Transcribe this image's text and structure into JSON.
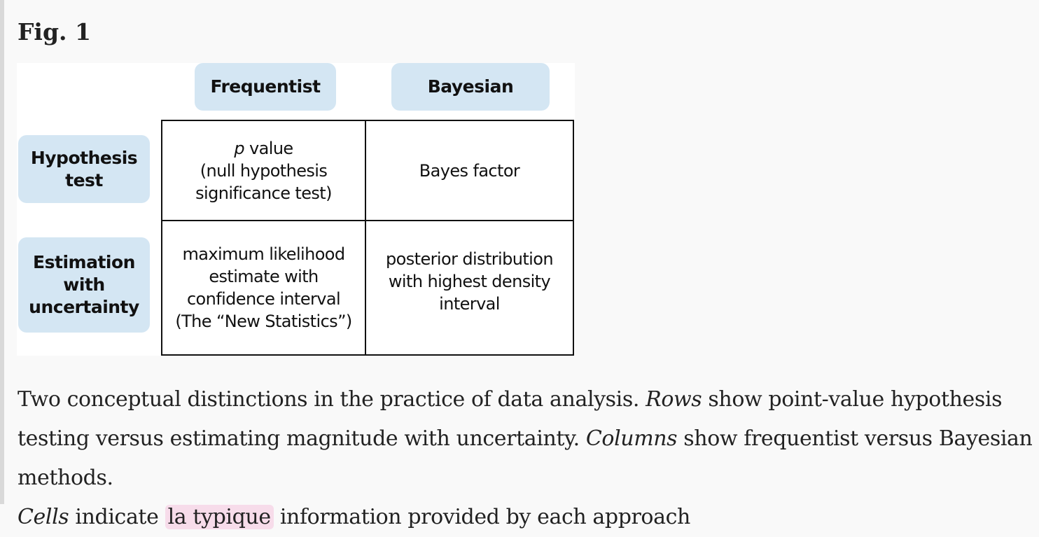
{
  "figure": {
    "label": "Fig. 1",
    "column_headers": [
      "Frequentist",
      "Bayesian"
    ],
    "row_headers": [
      {
        "line1": "Hypothesis",
        "line2": "test",
        "line3": ""
      },
      {
        "line1": "Estimation",
        "line2": "with",
        "line3": "uncertainty"
      }
    ],
    "cells": {
      "r1c1": {
        "italic": "p",
        "line1_rest": " value",
        "line2": "(null hypothesis",
        "line3": "significance test)"
      },
      "r1c2": {
        "line1": "Bayes factor"
      },
      "r2c1": {
        "line1": "maximum likelihood",
        "line2": "estimate with",
        "line3": "confidence interval",
        "line4": "(The “New Statistics”)"
      },
      "r2c2": {
        "line1": "posterior distribution",
        "line2": "with highest density",
        "line3": "interval"
      }
    }
  },
  "caption": {
    "part1": "Two conceptual distinctions in the practice of data analysis. ",
    "rows_term": "Rows",
    "part2": " show point-value hypothesis testing versus estimating magnitude with uncertainty. ",
    "columns_term": "Columns",
    "part3": " show frequentist versus Bayesian methods. ",
    "cells_term": "Cells",
    "part4": " indicate ",
    "highlight": "la typique",
    "part5": " information provided by each approach"
  }
}
